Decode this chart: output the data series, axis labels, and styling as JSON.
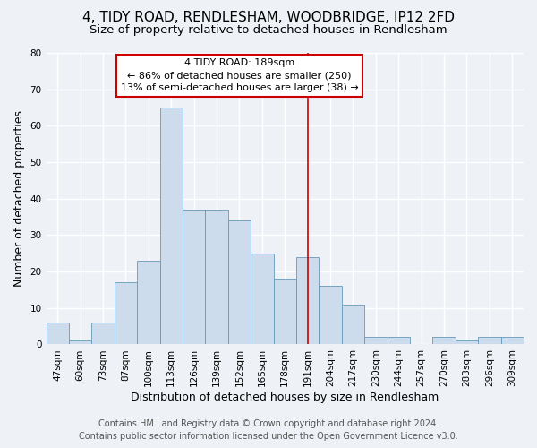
{
  "title": "4, TIDY ROAD, RENDLESHAM, WOODBRIDGE, IP12 2FD",
  "subtitle": "Size of property relative to detached houses in Rendlesham",
  "xlabel": "Distribution of detached houses by size in Rendlesham",
  "ylabel": "Number of detached properties",
  "bar_labels": [
    "47sqm",
    "60sqm",
    "73sqm",
    "87sqm",
    "100sqm",
    "113sqm",
    "126sqm",
    "139sqm",
    "152sqm",
    "165sqm",
    "178sqm",
    "191sqm",
    "204sqm",
    "217sqm",
    "230sqm",
    "244sqm",
    "257sqm",
    "270sqm",
    "283sqm",
    "296sqm",
    "309sqm"
  ],
  "bar_values": [
    6,
    1,
    6,
    17,
    23,
    65,
    37,
    37,
    34,
    25,
    18,
    24,
    16,
    11,
    2,
    2,
    0,
    2,
    1,
    2,
    2
  ],
  "bar_color": "#ccdcec",
  "bar_edge_color": "#6699bb",
  "annotation_title": "4 TIDY ROAD: 189sqm",
  "annotation_line1": "← 86% of detached houses are smaller (250)",
  "annotation_line2": "13% of semi-detached houses are larger (38) →",
  "vline_position": 11,
  "vline_color": "#cc0000",
  "annotation_box_edge": "#cc0000",
  "ylim": [
    0,
    80
  ],
  "yticks": [
    0,
    10,
    20,
    30,
    40,
    50,
    60,
    70,
    80
  ],
  "footer_line1": "Contains HM Land Registry data © Crown copyright and database right 2024.",
  "footer_line2": "Contains public sector information licensed under the Open Government Licence v3.0.",
  "background_color": "#eef2f7",
  "plot_bg_color": "#eef2f7",
  "grid_color": "#ffffff",
  "title_fontsize": 11,
  "subtitle_fontsize": 9.5,
  "axis_label_fontsize": 9,
  "tick_fontsize": 7.5,
  "footer_fontsize": 7
}
